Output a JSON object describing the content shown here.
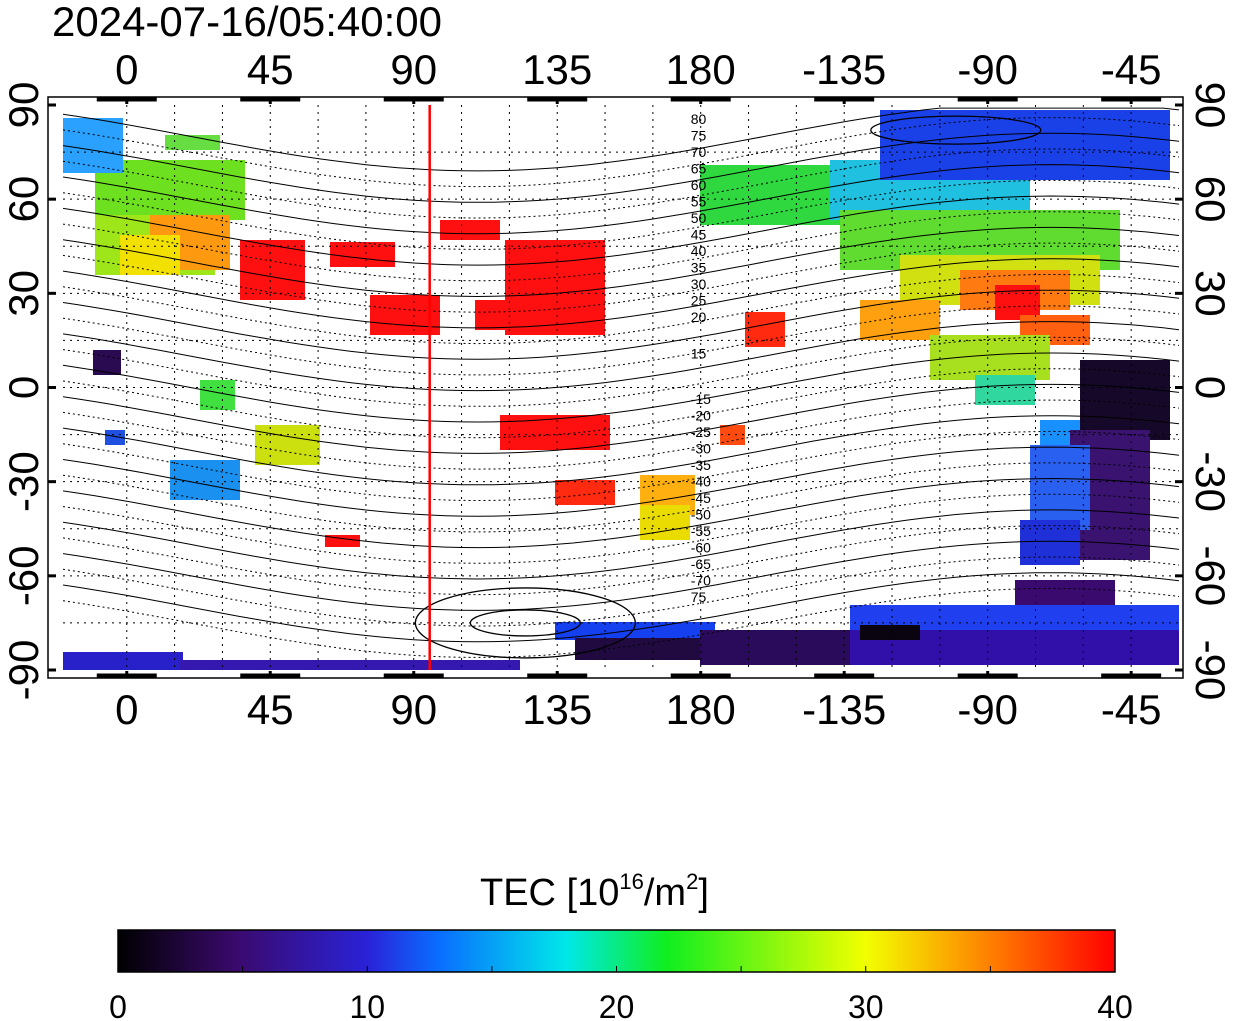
{
  "timestamp": "2024-07-16/05:40:00",
  "x_tick_labels": [
    "0",
    "45",
    "90",
    "135",
    "180",
    "-135",
    "-90",
    "-45"
  ],
  "y_tick_labels": [
    "90",
    "60",
    "30",
    "0",
    "-30",
    "-60",
    "-90"
  ],
  "contour_labels_north": [
    "80",
    "75",
    "70",
    "65",
    "60",
    "55",
    "50",
    "45",
    "40",
    "35",
    "30",
    "25",
    "20",
    "15"
  ],
  "contour_labels_south": [
    "-15",
    "-20",
    "-25",
    "-30",
    "-35",
    "-40",
    "-45",
    "-50",
    "-55",
    "-60",
    "-65",
    "-70",
    "75"
  ],
  "colorbar": {
    "title_main": "TEC  [10",
    "title_sup1": "16",
    "title_mid": "/m",
    "title_sup2": "2",
    "title_end": "]",
    "tick_labels": [
      "0",
      "10",
      "20",
      "30",
      "40"
    ],
    "min": 0,
    "max": 40,
    "stops": [
      "#000000",
      "#3a0a6e",
      "#2a22d8",
      "#0a6cff",
      "#00e8e8",
      "#10ee20",
      "#f2ff00",
      "#ff7a00",
      "#ff0000"
    ]
  },
  "terminator_longitude": 95,
  "map_extent": {
    "lon_min": -20,
    "lon_max": 330,
    "lat_min": -90,
    "lat_max": 90
  }
}
